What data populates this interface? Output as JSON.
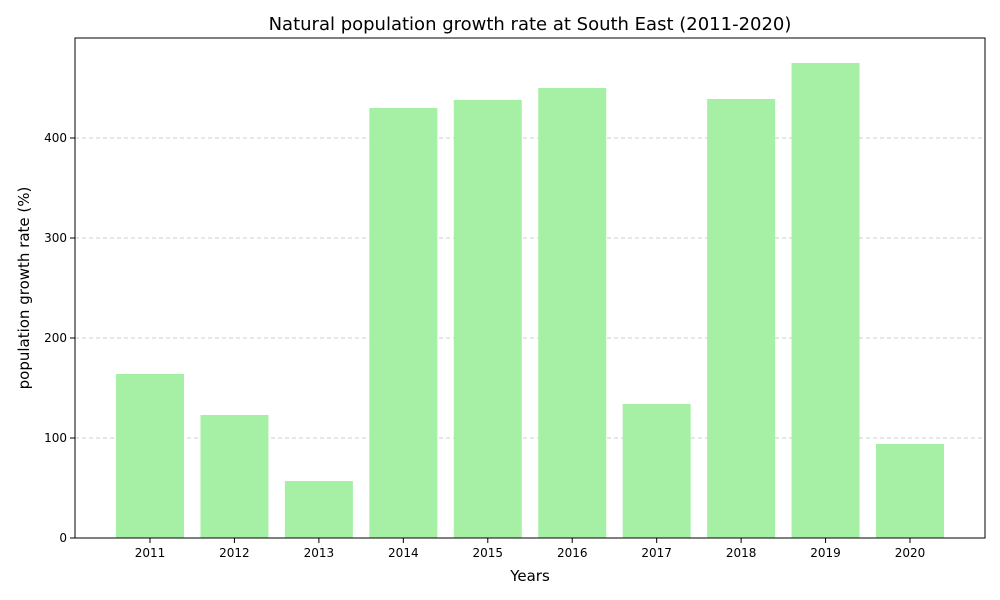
{
  "chart_data": {
    "type": "bar",
    "title": "Natural population growth rate at South East (2011-2020)",
    "xlabel": "Years",
    "ylabel": "population growth rate (%)",
    "categories": [
      "2011",
      "2012",
      "2013",
      "2014",
      "2015",
      "2016",
      "2017",
      "2018",
      "2019",
      "2020"
    ],
    "values": [
      164,
      123,
      57,
      430,
      438,
      450,
      134,
      439,
      475,
      94
    ],
    "ylim": [
      0,
      500
    ],
    "yticks": [
      0,
      100,
      200,
      300,
      400
    ],
    "grid": "y-dashed",
    "bar_color": "#a6f0a6",
    "legend": "none"
  }
}
